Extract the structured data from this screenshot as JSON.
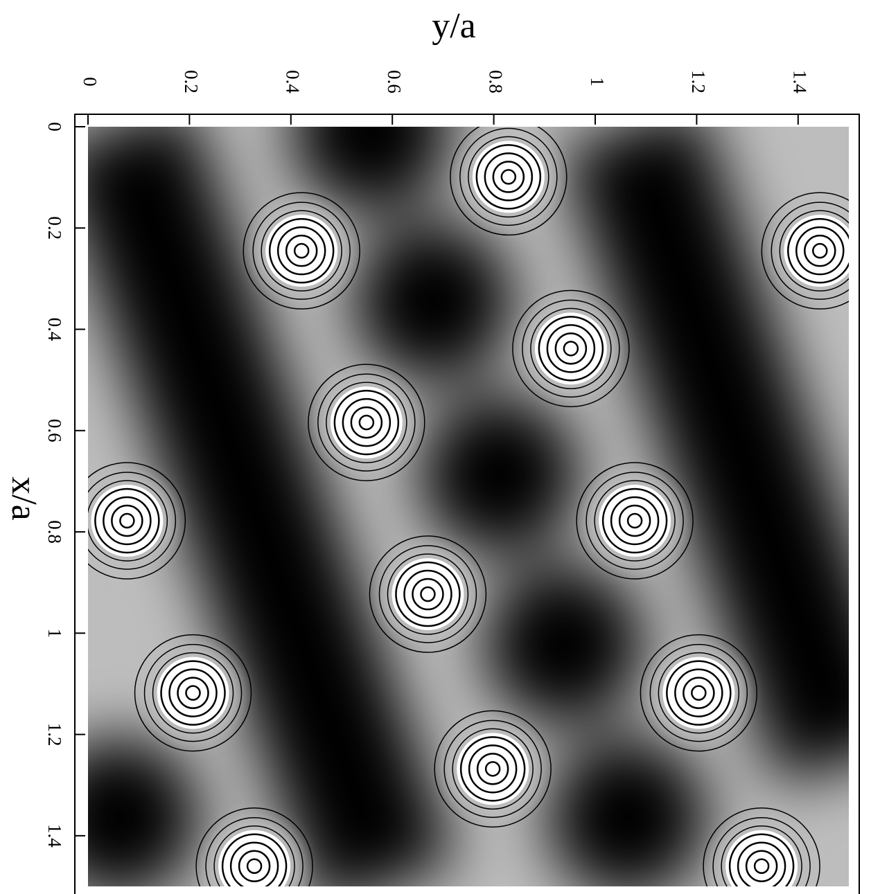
{
  "chart_data": {
    "type": "contour",
    "xlabel": "y/a",
    "ylabel": "x/a",
    "xlim": [
      0,
      1.5
    ],
    "ylim": [
      0,
      1.5
    ],
    "xticks": [
      0,
      0.2,
      0.4,
      0.6,
      0.8,
      1,
      1.2,
      1.4
    ],
    "yticks": [
      0,
      0.2,
      0.4,
      0.6,
      0.8,
      1,
      1.2,
      1.4
    ],
    "background_color": "#bdbdbd",
    "well_color": "#000000",
    "peak_color": "#ffffff",
    "contour_color": "#000000",
    "maxima": {
      "x": [
        0.829,
        0.421,
        0.952,
        1.443,
        0.549,
        0.077,
        1.078,
        0.67,
        0.207,
        1.204,
        0.798,
        0.328,
        1.328
      ],
      "y": [
        0.099,
        0.245,
        0.438,
        0.245,
        0.584,
        0.778,
        0.778,
        0.923,
        1.118,
        1.118,
        1.268,
        1.46,
        1.46
      ]
    },
    "minima": {
      "x": [
        0.681,
        0.811,
        0.938,
        1.064,
        0.062,
        0.558
      ],
      "y": [
        0.345,
        0.687,
        1.022,
        1.364,
        1.364,
        0.01
      ]
    },
    "valleys": [
      {
        "x": [
          0.059,
          0.592
        ],
        "y": [
          0,
          1.5
        ]
      },
      {
        "x": [
          1.065,
          1.5
        ],
        "y": [
          0,
          1.254
        ]
      }
    ]
  }
}
